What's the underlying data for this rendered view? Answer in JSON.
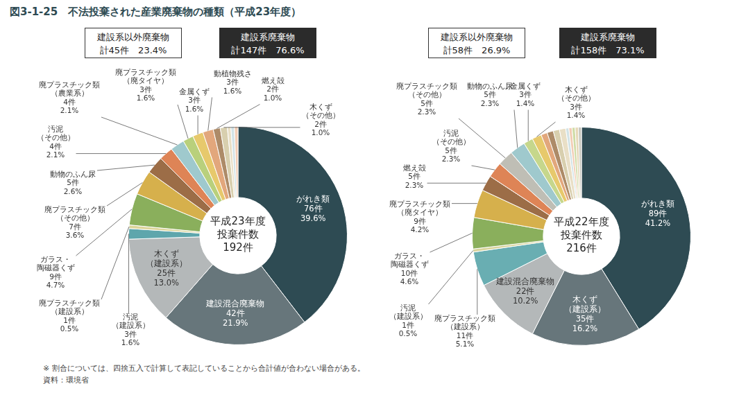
{
  "title": "図3-1-25　不法投棄された産業廃棄物の種類（平成23年度）",
  "note": "※ 割合については、四捨五入で計算して表記していることから合計値が合わない場合がある。",
  "source": "資料：環境省",
  "chart_data": [
    {
      "type": "doughnut",
      "center_text": [
        "平成23年度",
        "投棄件数",
        "192件"
      ],
      "summary": [
        {
          "name": "建設系以外廃棄物",
          "text": "計45件　23.4%"
        },
        {
          "name": "建設系廃棄物",
          "text": "計147件　76.6%"
        }
      ],
      "data_labels": true,
      "categories": [
        "がれき類",
        "建設混合廃棄物",
        "木くず（建設系）",
        "汚泥（建設系）",
        "廃プラスチック類（建設系）",
        "ガラス・陶磁器くず",
        "廃プラスチック類（その他）",
        "動物のふん尿",
        "汚泥（その他）",
        "廃プラスチック類（農業系）",
        "廃プラスチック類（廃タイヤ）",
        "金属くず",
        "動植物残さ",
        "燃え殻",
        "木くず（その他）",
        null,
        null,
        null
      ],
      "values": [
        76,
        42,
        25,
        3,
        1,
        9,
        7,
        5,
        4,
        4,
        3,
        3,
        3,
        2,
        2,
        1,
        1,
        1
      ],
      "value_labels": [
        "76件",
        "42件",
        "25件",
        "3件",
        "1件",
        "9件",
        "7件",
        "5件",
        "4件",
        "4件",
        "3件",
        "3件",
        "3件",
        "2件",
        "2件",
        null,
        null,
        null
      ],
      "percent_labels": [
        "39.6%",
        "21.9%",
        "13.0%",
        "1.6%",
        "0.5%",
        "4.7%",
        "3.6%",
        "2.6%",
        "2.1%",
        "2.1%",
        "1.6%",
        "1.6%",
        "1.6%",
        "1.0%",
        "1.0%",
        null,
        null,
        null
      ],
      "colors": [
        "#2e4b53",
        "#67767b",
        "#b4b8b9",
        "#5ea6ac",
        "#dcd59a",
        "#8aaf5c",
        "#d6b04c",
        "#9c6d47",
        "#de8456",
        "#9fc9cd",
        "#b9d07c",
        "#e7c96c",
        "#e2a77c",
        "#ad8b68",
        "#d8cfae",
        "#e9dfc6",
        "#d3e3e6",
        "#f2cdb5"
      ]
    },
    {
      "type": "doughnut",
      "center_text": [
        "平成22年度",
        "投棄件数",
        "216件"
      ],
      "summary": [
        {
          "name": "建設系以外廃棄物",
          "text": "計58件　26.9%"
        },
        {
          "name": "建設系廃棄物",
          "text": "計158件　73.1%"
        }
      ],
      "data_labels": true,
      "categories": [
        "がれき類",
        "木くず（建設系）",
        "建設混合廃棄物",
        "廃プラスチック類（建設系）",
        "汚泥（建設系）",
        "ガラス・陶磁器くず",
        "廃プラスチック類（廃タイヤ）",
        "燃え殻",
        "汚泥（その他）",
        "廃プラスチック類（その他）",
        "動物のふん尿",
        "金属くず",
        "木くず（その他）",
        null,
        null,
        null,
        null,
        null,
        null,
        null,
        null,
        null
      ],
      "values": [
        89,
        35,
        22,
        11,
        1,
        10,
        9,
        5,
        5,
        5,
        5,
        3,
        3,
        2,
        2,
        2,
        2,
        1,
        1,
        1,
        1,
        1
      ],
      "value_labels": [
        "89件",
        "35件",
        "22件",
        "11件",
        "1件",
        "10件",
        "9件",
        "5件",
        "5件",
        "5件",
        "5件",
        "3件",
        "3件",
        null,
        null,
        null,
        null,
        null,
        null,
        null,
        null,
        null
      ],
      "percent_labels": [
        "41.2%",
        "16.2%",
        "10.2%",
        "5.1%",
        "0.5%",
        "4.6%",
        "4.2%",
        "2.3%",
        "2.3%",
        "2.3%",
        "2.3%",
        "1.4%",
        "1.4%",
        null,
        null,
        null,
        null,
        null,
        null,
        null,
        null,
        null
      ],
      "colors": [
        "#2e4b53",
        "#67767b",
        "#b4b8b9",
        "#69aeb2",
        "#d8d49c",
        "#8aaf5c",
        "#d6b04c",
        "#9c6d47",
        "#de8456",
        "#bfbeb5",
        "#9fc9cd",
        "#c6d78c",
        "#e7c96c",
        "#e2a77c",
        "#ad8b68",
        "#d8cfae",
        "#e9dfc6",
        "#d3e3e6",
        "#f2cdb5",
        "#cfdca6",
        "#e6d8b8",
        "#c9c9c0"
      ]
    }
  ]
}
